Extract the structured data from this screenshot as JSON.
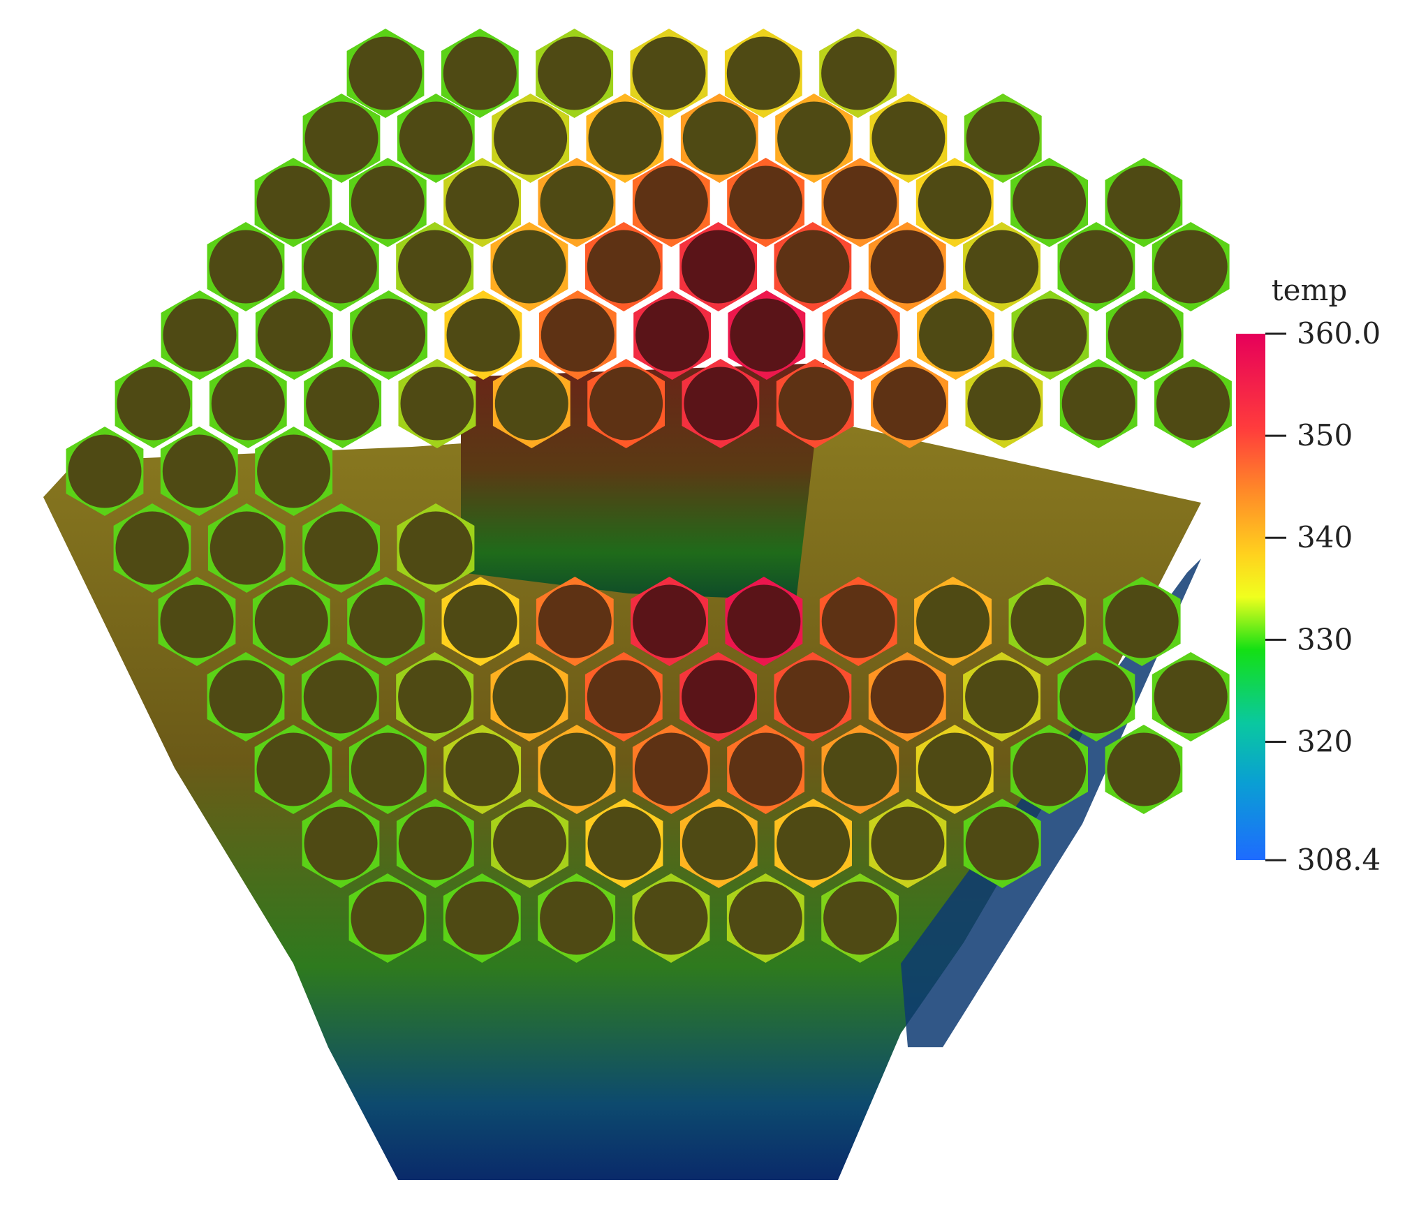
{
  "figure": {
    "background": "#ffffff"
  },
  "scene": {
    "description_kind": "3d-hexagonal-tube-assembly",
    "outer_wall_gradient": [
      "#c9a824",
      "#7a6a1a",
      "#1f7a26",
      "#0b3a7a"
    ],
    "tube_wall_stops": [
      {
        "temp": 308.4,
        "color": "#1e6bff"
      },
      {
        "temp": 320,
        "color": "#0ab2b2"
      },
      {
        "temp": 330,
        "color": "#14d214"
      },
      {
        "temp": 340,
        "color": "#ffd21e"
      },
      {
        "temp": 350,
        "color": "#ff5a28"
      },
      {
        "temp": 360,
        "color": "#e6005a"
      }
    ]
  },
  "colorbar": {
    "title": "temp",
    "min": 308.4,
    "max": 360.0,
    "ticks": [
      {
        "value": 360.0,
        "label": "360.0"
      },
      {
        "value": 350,
        "label": "350"
      },
      {
        "value": 340,
        "label": "340"
      },
      {
        "value": 330,
        "label": "330"
      },
      {
        "value": 320,
        "label": "320"
      },
      {
        "value": 308.4,
        "label": "308.4"
      }
    ],
    "gradient_stops": [
      "#e6005a",
      "#ff3c3c",
      "#ff8a28",
      "#ffd21e",
      "#f0ff1e",
      "#14e014",
      "#0ac8a0",
      "#0aa0d2",
      "#1e6bff"
    ]
  }
}
